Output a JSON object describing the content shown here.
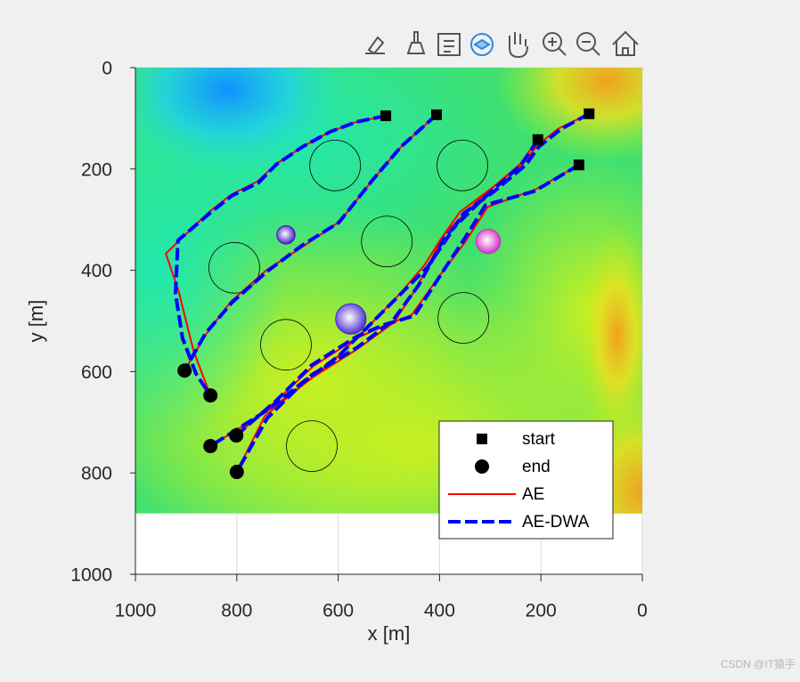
{
  "chart_data": {
    "type": "path-map",
    "xlabel": "x [m]",
    "ylabel": "y [m]",
    "xlim": [
      1000,
      0
    ],
    "ylim": [
      1000,
      0
    ],
    "xticks": [
      1000,
      800,
      600,
      400,
      200,
      0
    ],
    "yticks": [
      1000,
      800,
      600,
      400,
      200,
      0
    ],
    "grid": true,
    "terrain_extent": {
      "x": [
        1000,
        0
      ],
      "y": [
        880,
        0
      ]
    },
    "start": {
      "name": "start",
      "color": "#000000",
      "x": [
        506,
        406,
        105,
        206,
        125
      ],
      "y": [
        95,
        93,
        91,
        142,
        192
      ]
    },
    "end": {
      "name": "end",
      "color": "#000000",
      "x": [
        903,
        852,
        852,
        801,
        800
      ],
      "y": [
        598,
        647,
        747,
        726,
        798
      ]
    },
    "series": [
      {
        "name": "AE",
        "color": "#ff0000",
        "paths": [
          {
            "x": [
              506,
              564,
              617,
              670,
              722,
              760,
              810,
              855,
              940,
              915,
              885,
              852
            ],
            "y": [
              95,
              107,
              127,
              156,
              190,
              225,
              250,
              285,
              367,
              440,
              560,
              647
            ]
          },
          {
            "x": [
              406,
              476,
              529,
              596,
              668,
              742,
              812,
              862,
              903
            ],
            "y": [
              93,
              156,
              218,
              303,
              352,
              400,
              462,
              528,
              598
            ]
          },
          {
            "x": [
              105,
              165,
              206,
              236,
              300,
              360,
              396,
              430,
              478,
              532,
              603,
              668,
              745,
              800
            ],
            "y": [
              91,
              120,
              152,
              190,
              240,
              285,
              336,
              390,
              446,
              502,
              572,
              625,
              688,
              798
            ]
          },
          {
            "x": [
              206,
              241,
              320,
              390,
              444,
              490,
              563,
              648,
              740,
              852
            ],
            "y": [
              142,
              190,
              258,
              328,
              432,
              503,
              556,
              610,
              678,
              747
            ]
          },
          {
            "x": [
              125,
              210,
              305,
              350,
              392,
              455,
              515,
              566,
              650,
              725,
              801
            ],
            "y": [
              192,
              240,
              275,
              345,
              400,
              488,
              512,
              535,
              590,
              660,
              726
            ]
          }
        ]
      },
      {
        "name": "AE-DWA",
        "color": "#0000ff",
        "paths": [
          {
            "x": [
              506,
              564,
              617,
              670,
              722,
              757,
              810,
              854,
              916,
              921,
              907,
              880,
              852
            ],
            "y": [
              95,
              107,
              127,
              156,
              191,
              227,
              253,
              288,
              341,
              446,
              534,
              605,
              647
            ]
          },
          {
            "x": [
              406,
              476,
              529,
              599,
              670,
              740,
              810,
              862,
              903
            ],
            "y": [
              93,
              156,
              218,
              306,
              350,
              402,
              464,
              525,
              598
            ]
          },
          {
            "x": [
              105,
              160,
              204,
              230,
              292,
              353,
              388,
              424,
              476,
              529,
              599,
              670,
              740,
              800
            ],
            "y": [
              91,
              121,
              156,
              192,
              244,
              288,
              341,
              394,
              446,
              499,
              569,
              622,
              692,
              798
            ]
          },
          {
            "x": [
              206,
              239,
              318,
              388,
              441,
              492,
              562,
              650,
              738,
              852
            ],
            "y": [
              142,
              192,
              262,
              332,
              429,
              499,
              552,
              605,
              675,
              747
            ]
          },
          {
            "x": [
              125,
              213,
              309,
              353,
              388,
              450,
              511,
              564,
              652,
              722,
              801
            ],
            "y": [
              192,
              244,
              271,
              341,
              394,
              490,
              508,
              531,
              587,
              657,
              726
            ]
          }
        ]
      }
    ],
    "obstacles": {
      "color": "#000000",
      "x": [
        606,
        355,
        805,
        504,
        703,
        353,
        652
      ],
      "y": [
        193,
        193,
        395,
        343,
        547,
        494,
        747
      ],
      "r": [
        50,
        50,
        50,
        50,
        50,
        50,
        50
      ]
    },
    "moving_obstacles": {
      "colors": [
        "#3a10c0",
        "#4020d0",
        "#d020c0"
      ],
      "x": [
        703,
        575,
        304
      ],
      "y": [
        330,
        496,
        343
      ],
      "r": [
        18,
        30,
        24
      ]
    },
    "legend": "southeast",
    "watermark": "CSDN @IT猿手"
  }
}
